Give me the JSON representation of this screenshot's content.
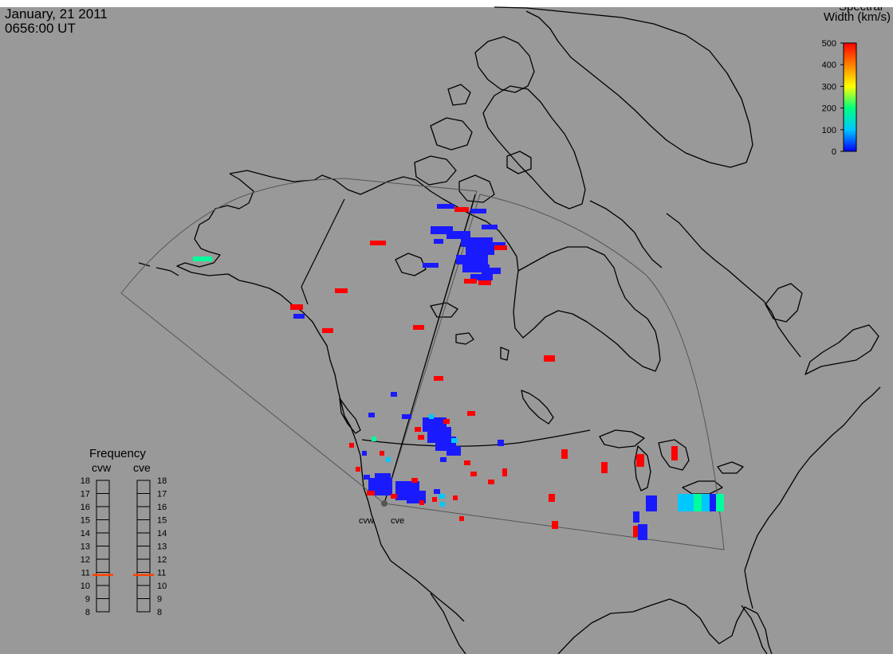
{
  "header": {
    "date": "January, 21 2011",
    "time": "0656:00 UT"
  },
  "colorbar": {
    "title_line1": "Spectral",
    "title_line2": "Width (km/s)",
    "ticks": [
      "500",
      "400",
      "300",
      "200",
      "100",
      "0"
    ],
    "min": 0,
    "max": 500,
    "colors": [
      "#0000ff",
      "#00c8ff",
      "#00ff80",
      "#ffff00",
      "#ff8000",
      "#ff0000"
    ]
  },
  "frequency_panel": {
    "title": "Frequency",
    "radar_left": "cvw",
    "radar_right": "cve",
    "ticks": [
      "18",
      "17",
      "16",
      "15",
      "14",
      "13",
      "12",
      "11",
      "10",
      "9",
      "8"
    ],
    "cvw_freq_mhz": 10.8,
    "cve_freq_mhz": 10.8,
    "marker_color": "#ff4000"
  },
  "radars": {
    "cvw_label": "cvw",
    "cve_label": "cve"
  }
}
